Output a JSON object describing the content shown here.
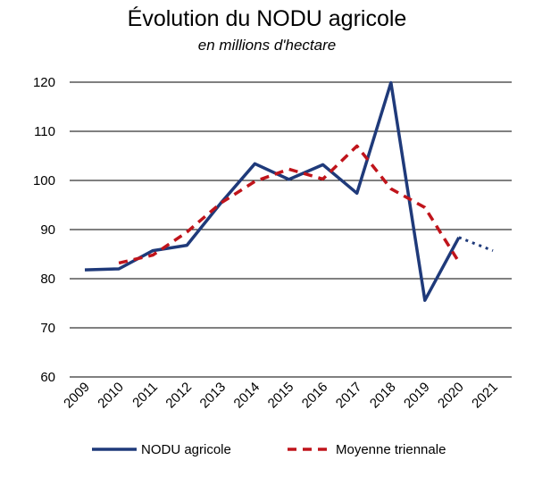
{
  "chart_data": {
    "type": "line",
    "title": "Évolution du NODU agricole",
    "subtitle": "en millions d'hectare",
    "categories": [
      "2009",
      "2010",
      "2011",
      "2012",
      "2013",
      "2014",
      "2015",
      "2016",
      "2017",
      "2018",
      "2019",
      "2020",
      "2021"
    ],
    "ylim": [
      60,
      120
    ],
    "yticks": [
      60,
      70,
      80,
      90,
      100,
      110,
      120
    ],
    "grid": true,
    "legend_position": "bottom",
    "series": [
      {
        "name": "NODU agricole",
        "color": "#1f3a7a",
        "style": "solid",
        "values": [
          81.8,
          82.0,
          85.7,
          86.8,
          95.4,
          103.4,
          100.2,
          103.2,
          97.4,
          119.9,
          75.6,
          88.4,
          null
        ]
      },
      {
        "name": "",
        "color": "#1f3a7a",
        "style": "dotted",
        "values": [
          null,
          null,
          null,
          null,
          null,
          null,
          null,
          null,
          null,
          null,
          null,
          88.4,
          85.7
        ]
      },
      {
        "name": "Moyenne triennale",
        "color": "#c0141b",
        "style": "dashed",
        "values": [
          null,
          83.2,
          84.8,
          89.5,
          95.4,
          99.8,
          102.3,
          100.3,
          107.0,
          98.3,
          94.5,
          83.4,
          null
        ]
      }
    ]
  }
}
